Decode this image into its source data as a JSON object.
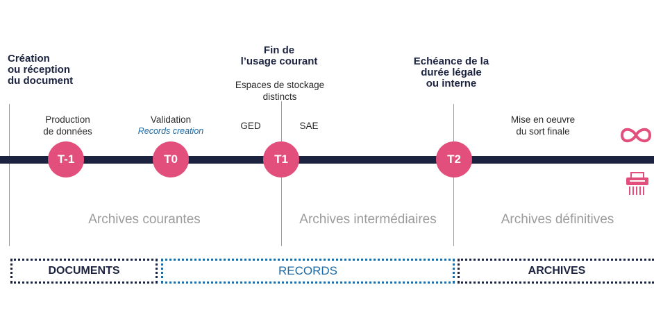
{
  "milestones": {
    "creation": "Création\nou réception\ndu document",
    "fin_usage": "Fin de\nl’usage courant",
    "echeance": "Echéance de la\ndurée légale\nou interne"
  },
  "labels": {
    "production": "Production\nde données",
    "validation": "Validation",
    "records_creation": "Records creation",
    "espaces": "Espaces de stockage\ndistincts",
    "ged": "GED",
    "sae": "SAE",
    "mise_en_oeuvre": "Mise en oeuvre\ndu sort finale"
  },
  "nodes": [
    "T-1",
    "T0",
    "T1",
    "T2"
  ],
  "phases": {
    "courantes": "Archives courantes",
    "intermediaires": "Archives intermédiaires",
    "definitives": "Archives définitives"
  },
  "boxes": {
    "documents": "DOCUMENTS",
    "records": "RECORDS",
    "archives": "ARCHIVES"
  },
  "icons": {
    "conservation": "infinity-icon",
    "destruction": "shredder-icon"
  },
  "colors": {
    "accent": "#e34f7d",
    "timeline": "#1c2340",
    "records_blue": "#1d6aa5",
    "phase_gray": "#9b9b9b"
  }
}
